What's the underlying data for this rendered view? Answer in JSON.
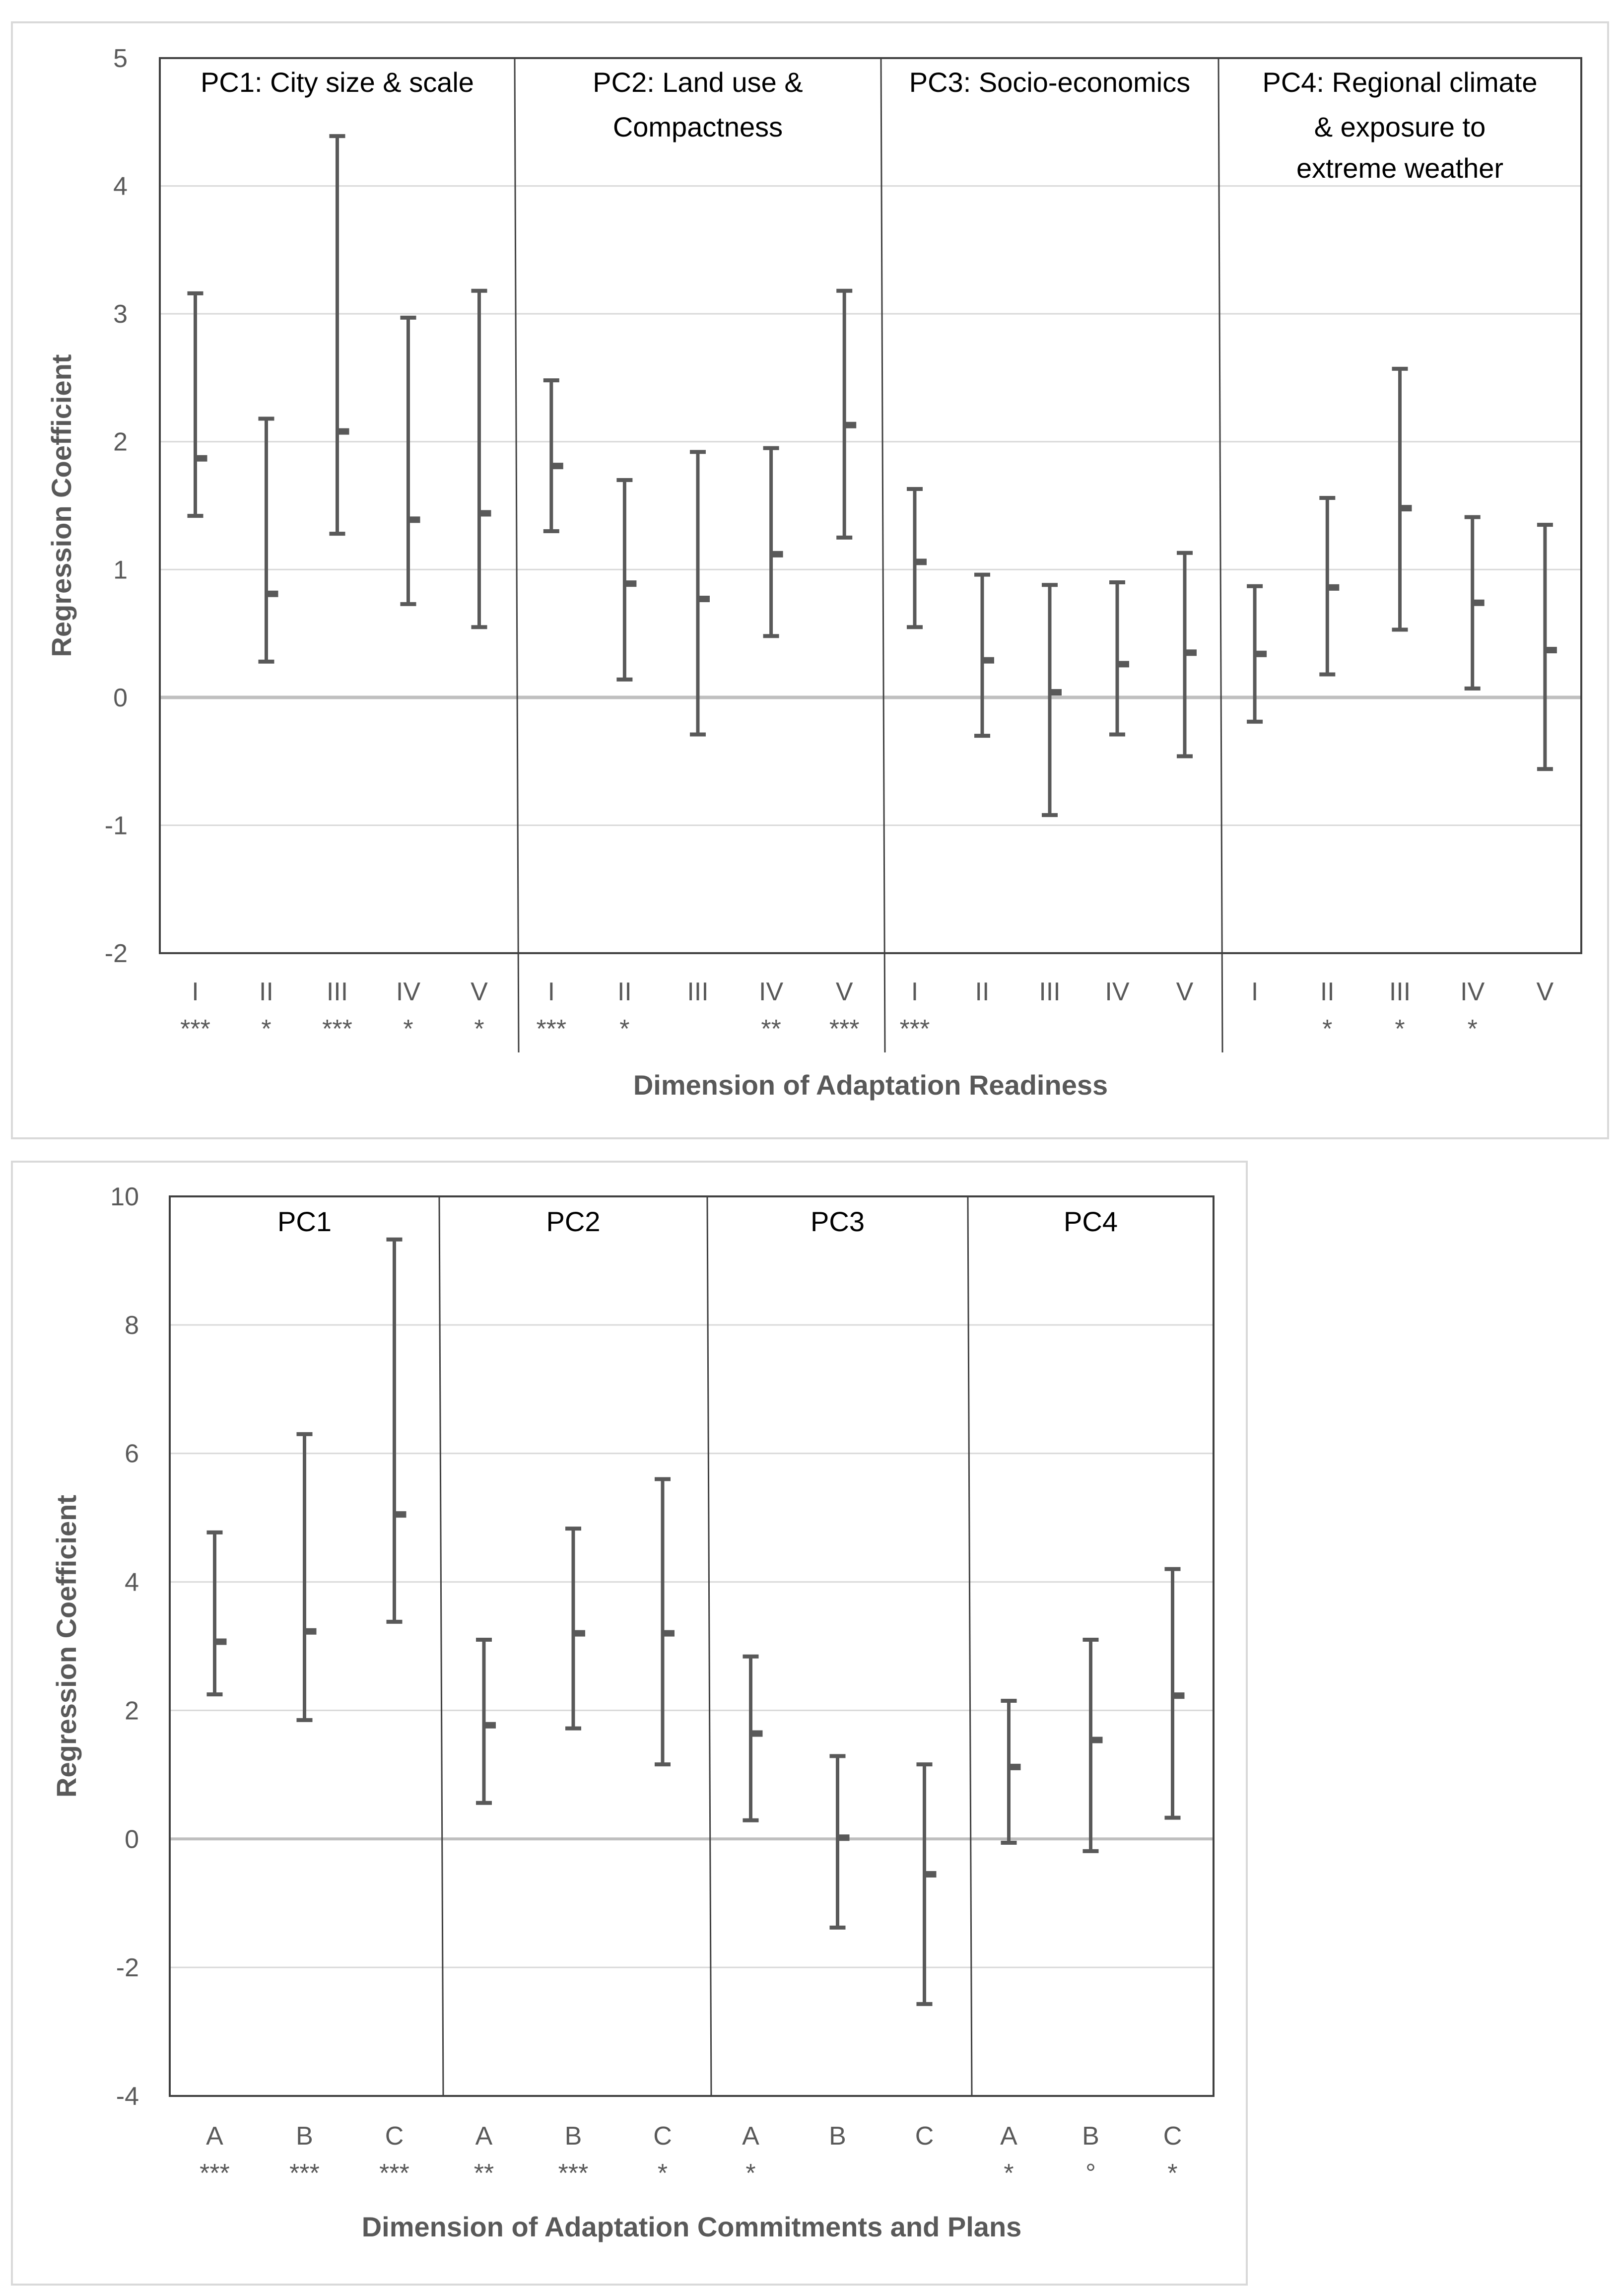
{
  "chart_data": [
    {
      "type": "errorbar",
      "panels": [
        {
          "title_lines": [
            "PC1: City size & scale"
          ],
          "categories": [
            "I",
            "II",
            "III",
            "IV",
            "V"
          ],
          "significance": [
            "***",
            "*",
            "***",
            "*",
            "*"
          ],
          "points": [
            {
              "estimate": 1.87,
              "lower": 1.42,
              "upper": 3.16
            },
            {
              "estimate": 0.81,
              "lower": 0.28,
              "upper": 2.18
            },
            {
              "estimate": 2.08,
              "lower": 1.28,
              "upper": 4.39
            },
            {
              "estimate": 1.39,
              "lower": 0.73,
              "upper": 2.97
            },
            {
              "estimate": 1.44,
              "lower": 0.55,
              "upper": 3.18
            }
          ]
        },
        {
          "title_lines": [
            "PC2: Land use &",
            "Compactness"
          ],
          "categories": [
            "I",
            "II",
            "III",
            "IV",
            "V"
          ],
          "significance": [
            "***",
            "*",
            "",
            "**",
            "***"
          ],
          "points": [
            {
              "estimate": 1.81,
              "lower": 1.3,
              "upper": 2.48
            },
            {
              "estimate": 0.89,
              "lower": 0.14,
              "upper": 1.7
            },
            {
              "estimate": 0.77,
              "lower": -0.29,
              "upper": 1.92
            },
            {
              "estimate": 1.12,
              "lower": 0.48,
              "upper": 1.95
            },
            {
              "estimate": 2.13,
              "lower": 1.25,
              "upper": 3.18
            }
          ]
        },
        {
          "title_lines": [
            "PC3: Socio-economics"
          ],
          "categories": [
            "I",
            "II",
            "III",
            "IV",
            "V"
          ],
          "significance": [
            "***",
            "",
            "",
            "",
            ""
          ],
          "points": [
            {
              "estimate": 1.06,
              "lower": 0.55,
              "upper": 1.63
            },
            {
              "estimate": 0.29,
              "lower": -0.3,
              "upper": 0.96
            },
            {
              "estimate": 0.04,
              "lower": -0.92,
              "upper": 0.88
            },
            {
              "estimate": 0.26,
              "lower": -0.29,
              "upper": 0.9
            },
            {
              "estimate": 0.35,
              "lower": -0.46,
              "upper": 1.13
            }
          ]
        },
        {
          "title_lines": [
            "PC4: Regional climate",
            "& exposure to",
            "extreme weather"
          ],
          "categories": [
            "I",
            "II",
            "III",
            "IV",
            "V"
          ],
          "significance": [
            "",
            "*",
            "*",
            "*",
            ""
          ],
          "points": [
            {
              "estimate": 0.34,
              "lower": -0.19,
              "upper": 0.87
            },
            {
              "estimate": 0.86,
              "lower": 0.18,
              "upper": 1.56
            },
            {
              "estimate": 1.48,
              "lower": 0.53,
              "upper": 2.57
            },
            {
              "estimate": 0.74,
              "lower": 0.07,
              "upper": 1.41
            },
            {
              "estimate": 0.37,
              "lower": -0.56,
              "upper": 1.35
            }
          ]
        }
      ],
      "ylabel": "Regression Coefficient",
      "xlabel": "Dimension of Adaptation Readiness",
      "ylim": [
        -2,
        5
      ],
      "yticks": [
        "5",
        "4",
        "3",
        "2",
        "1",
        "0",
        "-1",
        "-2"
      ],
      "grid": true
    },
    {
      "type": "errorbar",
      "panels": [
        {
          "title_lines": [
            "PC1"
          ],
          "categories": [
            "A",
            "B",
            "C"
          ],
          "significance": [
            "***",
            "***",
            "***"
          ],
          "points": [
            {
              "estimate": 3.07,
              "lower": 2.25,
              "upper": 4.77
            },
            {
              "estimate": 3.23,
              "lower": 1.85,
              "upper": 6.3
            },
            {
              "estimate": 5.05,
              "lower": 3.38,
              "upper": 9.33
            }
          ]
        },
        {
          "title_lines": [
            "PC2"
          ],
          "categories": [
            "A",
            "B",
            "C"
          ],
          "significance": [
            "**",
            "***",
            "*"
          ],
          "points": [
            {
              "estimate": 1.77,
              "lower": 0.56,
              "upper": 3.1
            },
            {
              "estimate": 3.2,
              "lower": 1.72,
              "upper": 4.83
            },
            {
              "estimate": 3.2,
              "lower": 1.16,
              "upper": 5.6
            }
          ]
        },
        {
          "title_lines": [
            "PC3"
          ],
          "categories": [
            "A",
            "B",
            "C"
          ],
          "significance": [
            "*",
            "",
            ""
          ],
          "points": [
            {
              "estimate": 1.64,
              "lower": 0.29,
              "upper": 2.84
            },
            {
              "estimate": 0.02,
              "lower": -1.38,
              "upper": 1.29
            },
            {
              "estimate": -0.55,
              "lower": -2.57,
              "upper": 1.16
            }
          ]
        },
        {
          "title_lines": [
            "PC4"
          ],
          "categories": [
            "A",
            "B",
            "C"
          ],
          "significance": [
            "*",
            "°",
            "*"
          ],
          "points": [
            {
              "estimate": 1.12,
              "lower": -0.06,
              "upper": 2.15
            },
            {
              "estimate": 1.54,
              "lower": -0.19,
              "upper": 3.1
            },
            {
              "estimate": 2.23,
              "lower": 0.33,
              "upper": 4.2
            }
          ]
        }
      ],
      "ylabel": "Regression Coefficient",
      "xlabel": "Dimension of Adaptation Commitments and Plans",
      "ylim": [
        -4,
        10
      ],
      "yticks": [
        "10",
        "8",
        "6",
        "4",
        "2",
        "0",
        "-2",
        "-4"
      ],
      "grid": true
    }
  ],
  "colors": {
    "bar": "#595959",
    "gridline": "#d9d9d9",
    "zero_line": "#bfbfbf",
    "axis_text": "#595959",
    "title_text": "#000000",
    "frame": "#404040",
    "outer_border": "#d9d9d9"
  }
}
